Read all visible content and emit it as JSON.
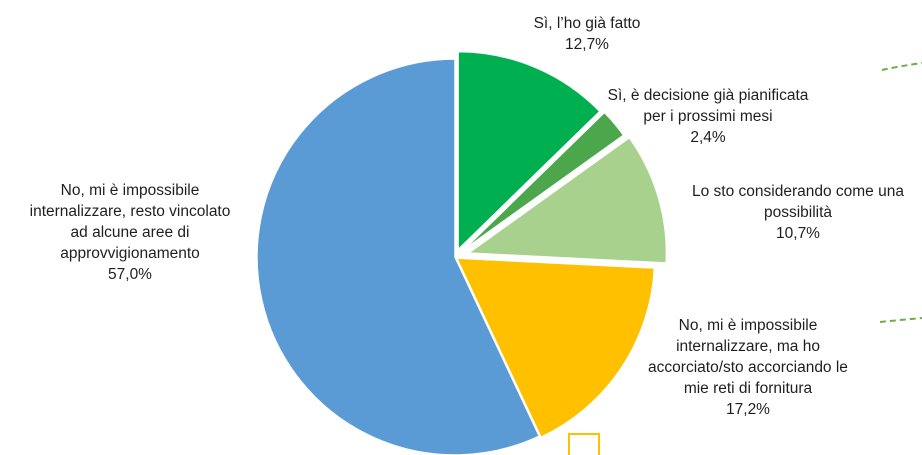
{
  "chart_data": {
    "type": "pie",
    "exploded": true,
    "slices": [
      {
        "name_lines": [
          "Sì, l’ho già fatto"
        ],
        "value": 12.7,
        "value_label": "12,7%",
        "color": "#00b050"
      },
      {
        "name_lines": [
          "Sì, è decisione già pianificata",
          "per i prossimi mesi"
        ],
        "value": 2.4,
        "value_label": "2,4%",
        "color": "#4ca64c"
      },
      {
        "name_lines": [
          "Lo sto considerando come una",
          "possibilità"
        ],
        "value": 10.7,
        "value_label": "10,7%",
        "color": "#a9d18e"
      },
      {
        "name_lines": [
          "No, mi è impossibile",
          "internalizzare, ma ho",
          "accorciato/sto accorciando le",
          "mie reti di fornitura"
        ],
        "value": 17.2,
        "value_label": "17,2%",
        "color": "#ffc000"
      },
      {
        "name_lines": [
          "No, mi è impossibile",
          "internalizzare, resto vincolato",
          "ad alcune aree di",
          "approvvigionamento"
        ],
        "value": 57.0,
        "value_label": "57,0%",
        "color": "#5b9bd5"
      }
    ],
    "colors": {
      "connector": "#70ad47"
    }
  }
}
